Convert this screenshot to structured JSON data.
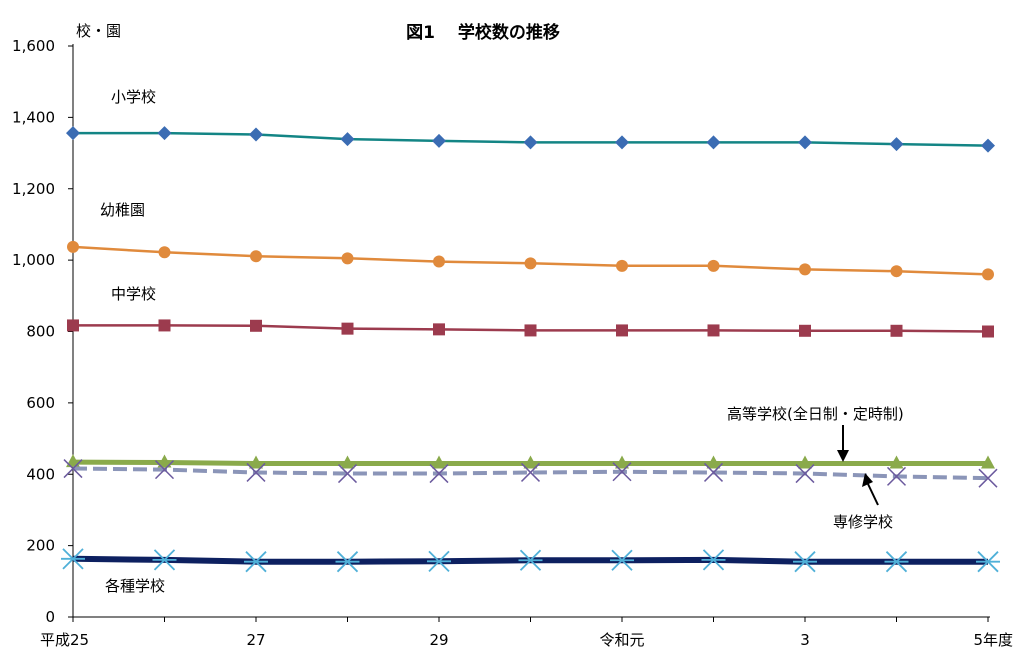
{
  "chart_data": {
    "type": "line",
    "title": "図1　 学校数の推移",
    "ylabel": "校・園",
    "xlabel": "",
    "ylim": [
      0,
      1600
    ],
    "yticks": [
      0,
      200,
      400,
      600,
      800,
      1000,
      1200,
      1400,
      1600
    ],
    "ytick_labels": [
      "0",
      "200",
      "400",
      "600",
      "800",
      "1,000",
      "1,200",
      "1,400",
      "1,600"
    ],
    "x_count": 11,
    "xtick_labels": [
      "平成25",
      "",
      "27",
      "",
      "29",
      "",
      "令和元",
      "",
      "3",
      "",
      "5年度"
    ],
    "grid": false,
    "series": [
      {
        "name": "小学校",
        "color": "#138585",
        "marker": "diamond",
        "dash": false,
        "width": 2.5,
        "values": [
          1356,
          1356,
          1352,
          1339,
          1334,
          1330,
          1330,
          1330,
          1330,
          1325,
          1321
        ]
      },
      {
        "name": "幼稚園",
        "color": "#e08a3c",
        "marker": "circle",
        "dash": false,
        "width": 2.5,
        "values": [
          1037,
          1022,
          1011,
          1005,
          996,
          991,
          984,
          984,
          974,
          969,
          960
        ]
      },
      {
        "name": "中学校",
        "color": "#9c3b4e",
        "marker": "square",
        "dash": false,
        "width": 2.5,
        "values": [
          817,
          817,
          816,
          808,
          806,
          803,
          803,
          803,
          802,
          802,
          800
        ]
      },
      {
        "name": "高等学校(全日制・定時制)",
        "color": "#8aaa4b",
        "marker": "triangle",
        "dash": false,
        "width": 5,
        "values": [
          434,
          433,
          430,
          430,
          430,
          430,
          430,
          430,
          430,
          430,
          430
        ]
      },
      {
        "name": "専修学校",
        "color": "#8b95b8",
        "marker": "x",
        "dash": true,
        "width": 4,
        "values": [
          416,
          413,
          405,
          402,
          402,
          405,
          407,
          405,
          402,
          394,
          389
        ]
      },
      {
        "name": "各種学校",
        "color": "#0d2060",
        "marker": "asterisk",
        "dash": false,
        "width": 6,
        "values": [
          163,
          160,
          155,
          155,
          156,
          159,
          159,
          160,
          155,
          155,
          155
        ]
      }
    ]
  }
}
